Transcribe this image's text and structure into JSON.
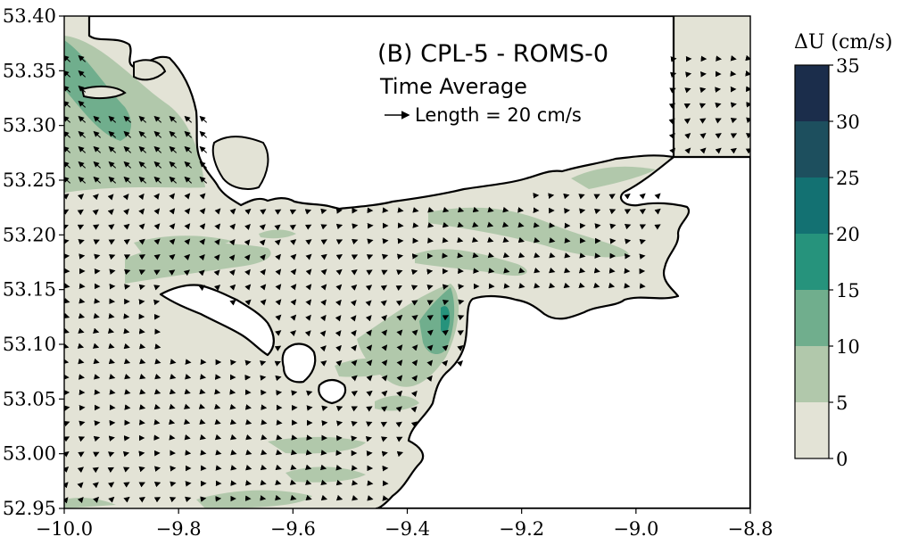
{
  "title": "(B) CPL-5 - ROMS-0",
  "subtitle": "Time Average",
  "vector_key": {
    "label": "Length = 20 cm/s",
    "length_cms": 20
  },
  "x_axis": {
    "ticks": [
      "−10.0",
      "−9.8",
      "−9.6",
      "−9.4",
      "−9.2",
      "−9.0",
      "−8.8"
    ],
    "range": [
      -10.0,
      -8.8
    ]
  },
  "y_axis": {
    "ticks": [
      "53.40",
      "53.35",
      "53.30",
      "53.25",
      "53.20",
      "53.15",
      "53.10",
      "53.05",
      "53.00",
      "52.95"
    ],
    "range": [
      52.95,
      53.4
    ]
  },
  "colorbar": {
    "label": "ΔU (cm/s)",
    "ticks": [
      "0",
      "5",
      "10",
      "15",
      "20",
      "25",
      "30",
      "35"
    ],
    "levels": [
      0,
      5,
      10,
      15,
      20,
      25,
      30,
      35
    ],
    "colors": [
      "#e3e3d6",
      "#b1c8ab",
      "#70ae8d",
      "#26937c",
      "#137172",
      "#1d4f5e",
      "#1b2d4b"
    ]
  }
}
